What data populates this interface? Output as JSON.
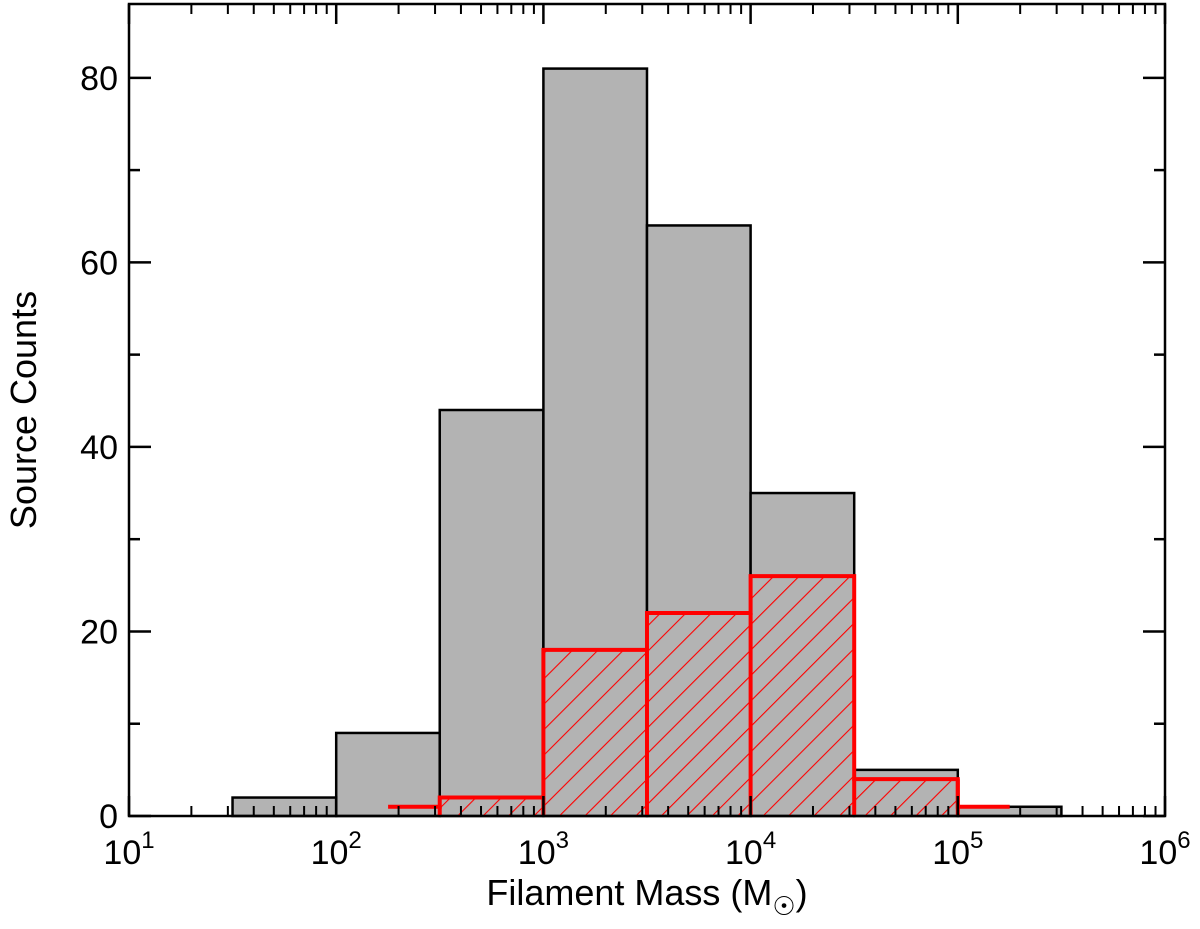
{
  "chart_data": {
    "type": "bar",
    "xscale": "log",
    "xlim": [
      10,
      1000000
    ],
    "ylim": [
      0,
      88
    ],
    "xlabel": "Filament Mass (M",
    "xlabel_symbol": "☉",
    "xlabel_close": ")",
    "ylabel": "Source Counts",
    "grid": false,
    "x_ticks": [
      {
        "base": "10",
        "exp": "1"
      },
      {
        "base": "10",
        "exp": "2"
      },
      {
        "base": "10",
        "exp": "3"
      },
      {
        "base": "10",
        "exp": "4"
      },
      {
        "base": "10",
        "exp": "5"
      },
      {
        "base": "10",
        "exp": "6"
      }
    ],
    "y_ticks": [
      "0",
      "20",
      "40",
      "60",
      "80"
    ],
    "series": [
      {
        "style": "filled-gray",
        "color": "#b3b3b3",
        "bins": [
          {
            "from": 31.6,
            "to": 100,
            "count": 2
          },
          {
            "from": 100,
            "to": 316,
            "count": 9
          },
          {
            "from": 316,
            "to": 1000,
            "count": 44
          },
          {
            "from": 1000,
            "to": 3162,
            "count": 81
          },
          {
            "from": 3162,
            "to": 10000,
            "count": 64
          },
          {
            "from": 10000,
            "to": 31623,
            "count": 35
          },
          {
            "from": 31623,
            "to": 100000,
            "count": 5
          },
          {
            "from": 100000,
            "to": 316228,
            "count": 1
          }
        ]
      },
      {
        "style": "red-hatched-step",
        "color": "#ff0000",
        "bins": [
          {
            "from": 178,
            "to": 316,
            "count": 1
          },
          {
            "from": 316,
            "to": 1000,
            "count": 2
          },
          {
            "from": 1000,
            "to": 3162,
            "count": 18
          },
          {
            "from": 3162,
            "to": 10000,
            "count": 22
          },
          {
            "from": 10000,
            "to": 31623,
            "count": 26
          },
          {
            "from": 31623,
            "to": 100000,
            "count": 4
          },
          {
            "from": 100000,
            "to": 178000,
            "count": 1
          }
        ]
      }
    ]
  }
}
